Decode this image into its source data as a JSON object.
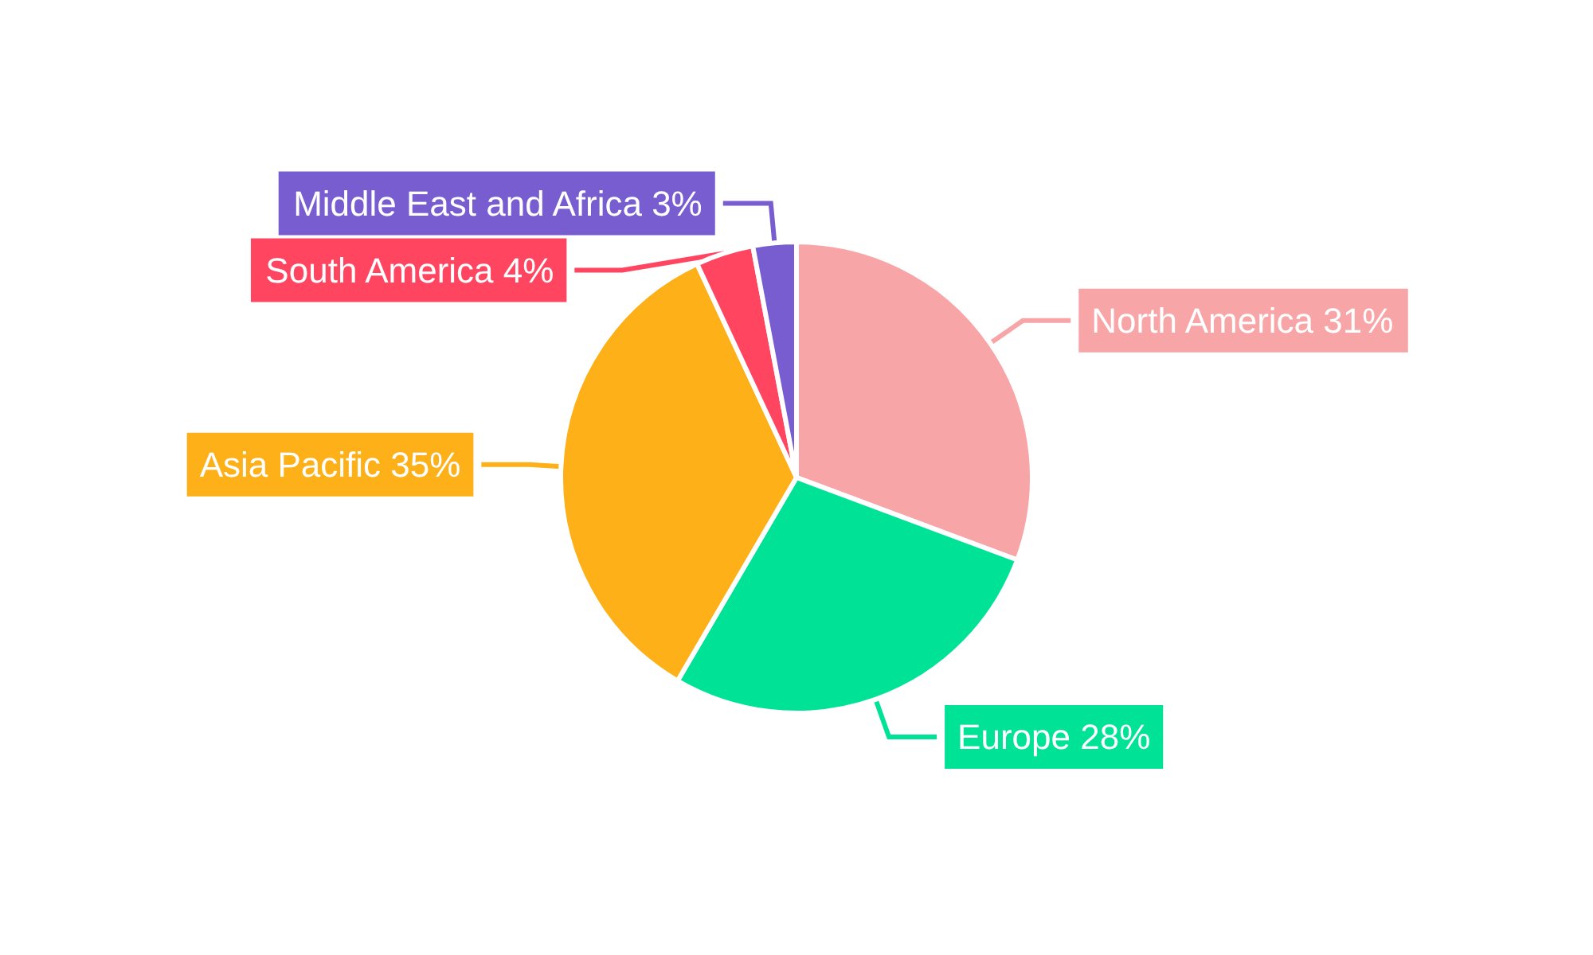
{
  "chart_data": {
    "type": "pie",
    "categories": [
      "North America",
      "Europe",
      "Asia Pacific",
      "South America",
      "Middle East and Africa"
    ],
    "values": [
      31,
      28,
      35,
      4,
      3
    ],
    "value_labels": [
      "31%",
      "28%",
      "35%",
      "4%",
      "3%"
    ],
    "colors": [
      "#f8a5a8",
      "#00e396",
      "#feb019",
      "#ff4560",
      "#775dd0"
    ],
    "legend": false
  }
}
